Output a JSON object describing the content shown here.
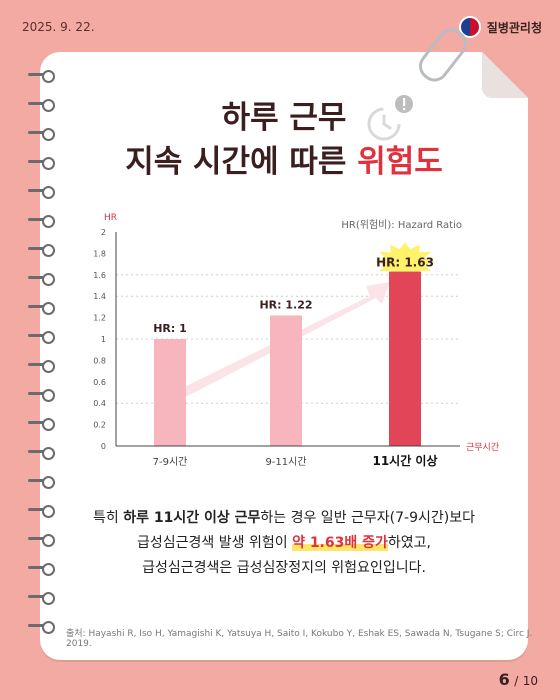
{
  "header": {
    "date": "2025. 9. 22.",
    "agency": "질병관리청"
  },
  "title": {
    "line1": "하루 근무",
    "line2_pre": "지속 시간에 따른 ",
    "line2_hl": "위험도"
  },
  "hr_note": "HR(위험비): Hazard Ratio",
  "chart_data": {
    "type": "bar",
    "ylabel": "HR",
    "xlabel": "근무시간",
    "categories": [
      "7-9시간",
      "9-11시간",
      "11시간 이상"
    ],
    "values": [
      1,
      1.22,
      1.63
    ],
    "data_labels": [
      "HR: 1",
      "HR: 1.22",
      "HR: 1.63"
    ],
    "yticks": [
      0,
      0.2,
      0.4,
      0.6,
      0.8,
      1,
      1.2,
      1.4,
      1.6,
      1.8,
      2
    ],
    "ylim": [
      0,
      2
    ],
    "grid": true,
    "bar_colors": [
      "#f7b5be",
      "#f7b5be",
      "#e24557"
    ]
  },
  "body": {
    "s1": "특히 ",
    "s1b": "하루 11시간 이상 근무",
    "s2": "하는 경우 일반 근무자(7-9시간)보다",
    "s3": "급성심근경색 발생 위험이 ",
    "s3m": "약 1.63배 증가",
    "s4": "하였고,",
    "s5": "급성심근경색은 급성심장정지의 위험요인입니다."
  },
  "source": "출처: Hayashi R, Iso H, Yamagishi K, Yatsuya H, Saito I, Kokubo Y, Eshak ES, Sawada N, Tsugane S; Circ J. 2019.",
  "pager": {
    "current": "6",
    "sep": "/",
    "total": "10"
  }
}
